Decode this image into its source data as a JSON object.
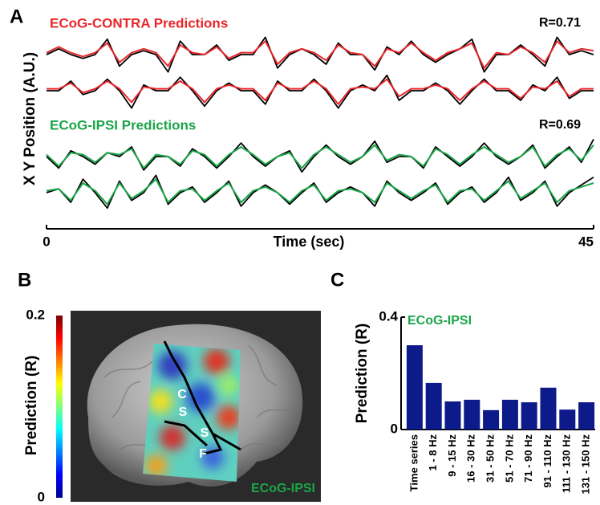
{
  "chart_data": [
    {
      "type": "line",
      "panel": "A",
      "y_label": "X Y Position (A.U.)",
      "x_label": "Time (sec)",
      "xlim": [
        0,
        45
      ],
      "xticks": [
        0,
        45
      ],
      "ylim": [
        -1,
        1
      ],
      "x": [
        0,
        1,
        2,
        3,
        4,
        5,
        6,
        7,
        8,
        9,
        10,
        11,
        12,
        13,
        14,
        15,
        16,
        17,
        18,
        19,
        20,
        21,
        22,
        23,
        24,
        25,
        26,
        27,
        28,
        29,
        30,
        31,
        32,
        33,
        34,
        35,
        36,
        37,
        38,
        39,
        40,
        41,
        42,
        43,
        44,
        45
      ],
      "actual_color": "#000000",
      "groups": [
        {
          "title": "ECoG-CONTRA Predictions",
          "r_label": "R=0.71",
          "color": "#e8262a",
          "traces": [
            {
              "actual": [
                0,
                0.3,
                0,
                -0.2,
                0,
                0.8,
                -0.6,
                0,
                0.2,
                0,
                -0.9,
                0.7,
                0,
                0,
                0.5,
                -0.3,
                0,
                0,
                0.9,
                -0.7,
                0,
                0.3,
                0,
                -0.5,
                0.6,
                0,
                0,
                -0.8,
                0.4,
                0,
                0.7,
                0,
                -0.4,
                0,
                0.3,
                0.8,
                -0.9,
                0,
                0,
                0.5,
                0,
                -0.6,
                0.9,
                0,
                0.2,
                0
              ],
              "predicted": [
                0.1,
                0.4,
                0.1,
                -0.1,
                0.1,
                0.6,
                -0.4,
                0.1,
                0.3,
                0.1,
                -0.6,
                0.5,
                0.1,
                0,
                0.4,
                -0.2,
                0.1,
                0.1,
                0.7,
                -0.5,
                0.1,
                0.3,
                0.1,
                -0.3,
                0.5,
                0.1,
                0,
                -0.6,
                0.3,
                0.1,
                0.6,
                0.1,
                -0.3,
                0.1,
                0.3,
                0.6,
                -0.7,
                0.1,
                0,
                0.4,
                0.1,
                -0.4,
                0.7,
                0.1,
                0.3,
                0.2
              ]
            },
            {
              "actual": [
                0,
                0,
                0.5,
                -0.2,
                0,
                0.6,
                0,
                -0.9,
                0.3,
                0,
                0,
                0.7,
                0,
                -0.8,
                0,
                0.4,
                0,
                0,
                -0.7,
                0.5,
                0,
                0,
                0.6,
                0,
                -0.9,
                0,
                0.3,
                0,
                0.8,
                -0.5,
                0,
                0,
                0.4,
                0,
                -0.7,
                0,
                0.6,
                0,
                0,
                -0.5,
                0.3,
                0,
                0.7,
                -0.4,
                0,
                0
              ],
              "predicted": [
                0.1,
                0.1,
                0.4,
                -0.1,
                0.1,
                0.5,
                0.1,
                -0.6,
                0.2,
                0.1,
                0.1,
                0.5,
                0.1,
                -0.6,
                0.1,
                0.3,
                0.1,
                0.1,
                -0.5,
                0.4,
                0.1,
                0.1,
                0.5,
                0.1,
                -0.7,
                0.1,
                0.2,
                0.1,
                0.6,
                -0.3,
                0.1,
                0.1,
                0.3,
                0.1,
                -0.5,
                0.1,
                0.5,
                0.1,
                0.1,
                -0.4,
                0.2,
                0.1,
                0.5,
                -0.3,
                0.1,
                0.1
              ]
            }
          ]
        },
        {
          "title": "ECoG-IPSI Predictions",
          "r_label": "R=0.69",
          "color": "#1aa548",
          "traces": [
            {
              "actual": [
                0,
                -0.6,
                0.3,
                0,
                -0.4,
                0.2,
                0,
                0.5,
                -0.7,
                0,
                0,
                -0.5,
                0.4,
                0,
                -0.6,
                0,
                0.7,
                0,
                -0.5,
                0,
                0.3,
                -0.8,
                0,
                0.6,
                0,
                -0.4,
                0,
                0.8,
                -0.3,
                0,
                0,
                -0.6,
                0.5,
                0,
                -0.5,
                0,
                0.7,
                0,
                -0.4,
                0,
                0.6,
                -0.6,
                0,
                0.5,
                -0.3,
                0.9
              ],
              "predicted": [
                0.1,
                -0.5,
                0.2,
                0.1,
                -0.3,
                0.2,
                0.1,
                0.4,
                -0.6,
                0.1,
                0,
                -0.4,
                0.3,
                0.1,
                -0.5,
                0.1,
                0.5,
                0.1,
                -0.4,
                0,
                0.2,
                -0.6,
                0.1,
                0.5,
                0.1,
                -0.3,
                0,
                0.6,
                -0.2,
                0.1,
                0,
                -0.5,
                0.4,
                0.1,
                -0.4,
                0.1,
                0.5,
                0.1,
                -0.3,
                0,
                0.5,
                -0.5,
                0.1,
                0.4,
                -0.2,
                0.6
              ]
            },
            {
              "actual": [
                0,
                0.2,
                -0.5,
                0.7,
                0,
                -0.8,
                0.6,
                -0.4,
                0,
                0.9,
                -0.6,
                0,
                0.3,
                -0.5,
                0,
                0.6,
                -0.7,
                0,
                0.4,
                0,
                -0.6,
                0,
                0.5,
                -0.5,
                0,
                0.3,
                0,
                -0.7,
                0.6,
                0,
                -0.4,
                0,
                0.5,
                -0.6,
                0,
                0.3,
                -0.5,
                0,
                0.8,
                -0.4,
                0,
                0.6,
                -0.7,
                0,
                0.4,
                0.8
              ],
              "predicted": [
                0.1,
                0.2,
                -0.4,
                0.5,
                0.1,
                -0.6,
                0.5,
                -0.3,
                0.1,
                0.7,
                -0.5,
                0.1,
                0.2,
                -0.4,
                0.1,
                0.5,
                -0.5,
                0.1,
                0.3,
                0,
                -0.5,
                0.1,
                0.4,
                -0.4,
                0.1,
                0.2,
                0,
                -0.5,
                0.5,
                0.1,
                -0.3,
                0.1,
                0.4,
                -0.5,
                0.1,
                0.2,
                -0.4,
                0.1,
                0.6,
                -0.3,
                0.1,
                0.5,
                -0.5,
                0.1,
                0.3,
                0.5
              ]
            }
          ]
        }
      ]
    },
    {
      "type": "heatmap",
      "panel": "B",
      "colorbar_label": "Prediction (R)",
      "clim": [
        0,
        0.2
      ],
      "cticks": [
        0,
        0.2
      ],
      "colormap": "jet",
      "annotations": [
        "C",
        "S",
        "S",
        "F"
      ],
      "label": "ECoG-IPSI",
      "label_color": "#1aa548"
    },
    {
      "type": "bar",
      "panel": "C",
      "title": "ECoG-IPSI",
      "title_color": "#1aa548",
      "y_label": "Prediction (R)",
      "categories": [
        "Time series",
        "1 - 8 Hz",
        "9 - 15 Hz",
        "16 - 30 Hz",
        "31 - 50 Hz",
        "51 - 70 Hz",
        "71 - 90 Hz",
        "91 - 110 Hz",
        "111 - 130 Hz",
        "131 - 150 Hz"
      ],
      "values": [
        0.3,
        0.166,
        0.1,
        0.106,
        0.069,
        0.106,
        0.097,
        0.149,
        0.071,
        0.097
      ],
      "color": "#0d1a8a",
      "ylim": [
        0,
        0.4
      ],
      "yticks": [
        0,
        0.4
      ]
    }
  ]
}
